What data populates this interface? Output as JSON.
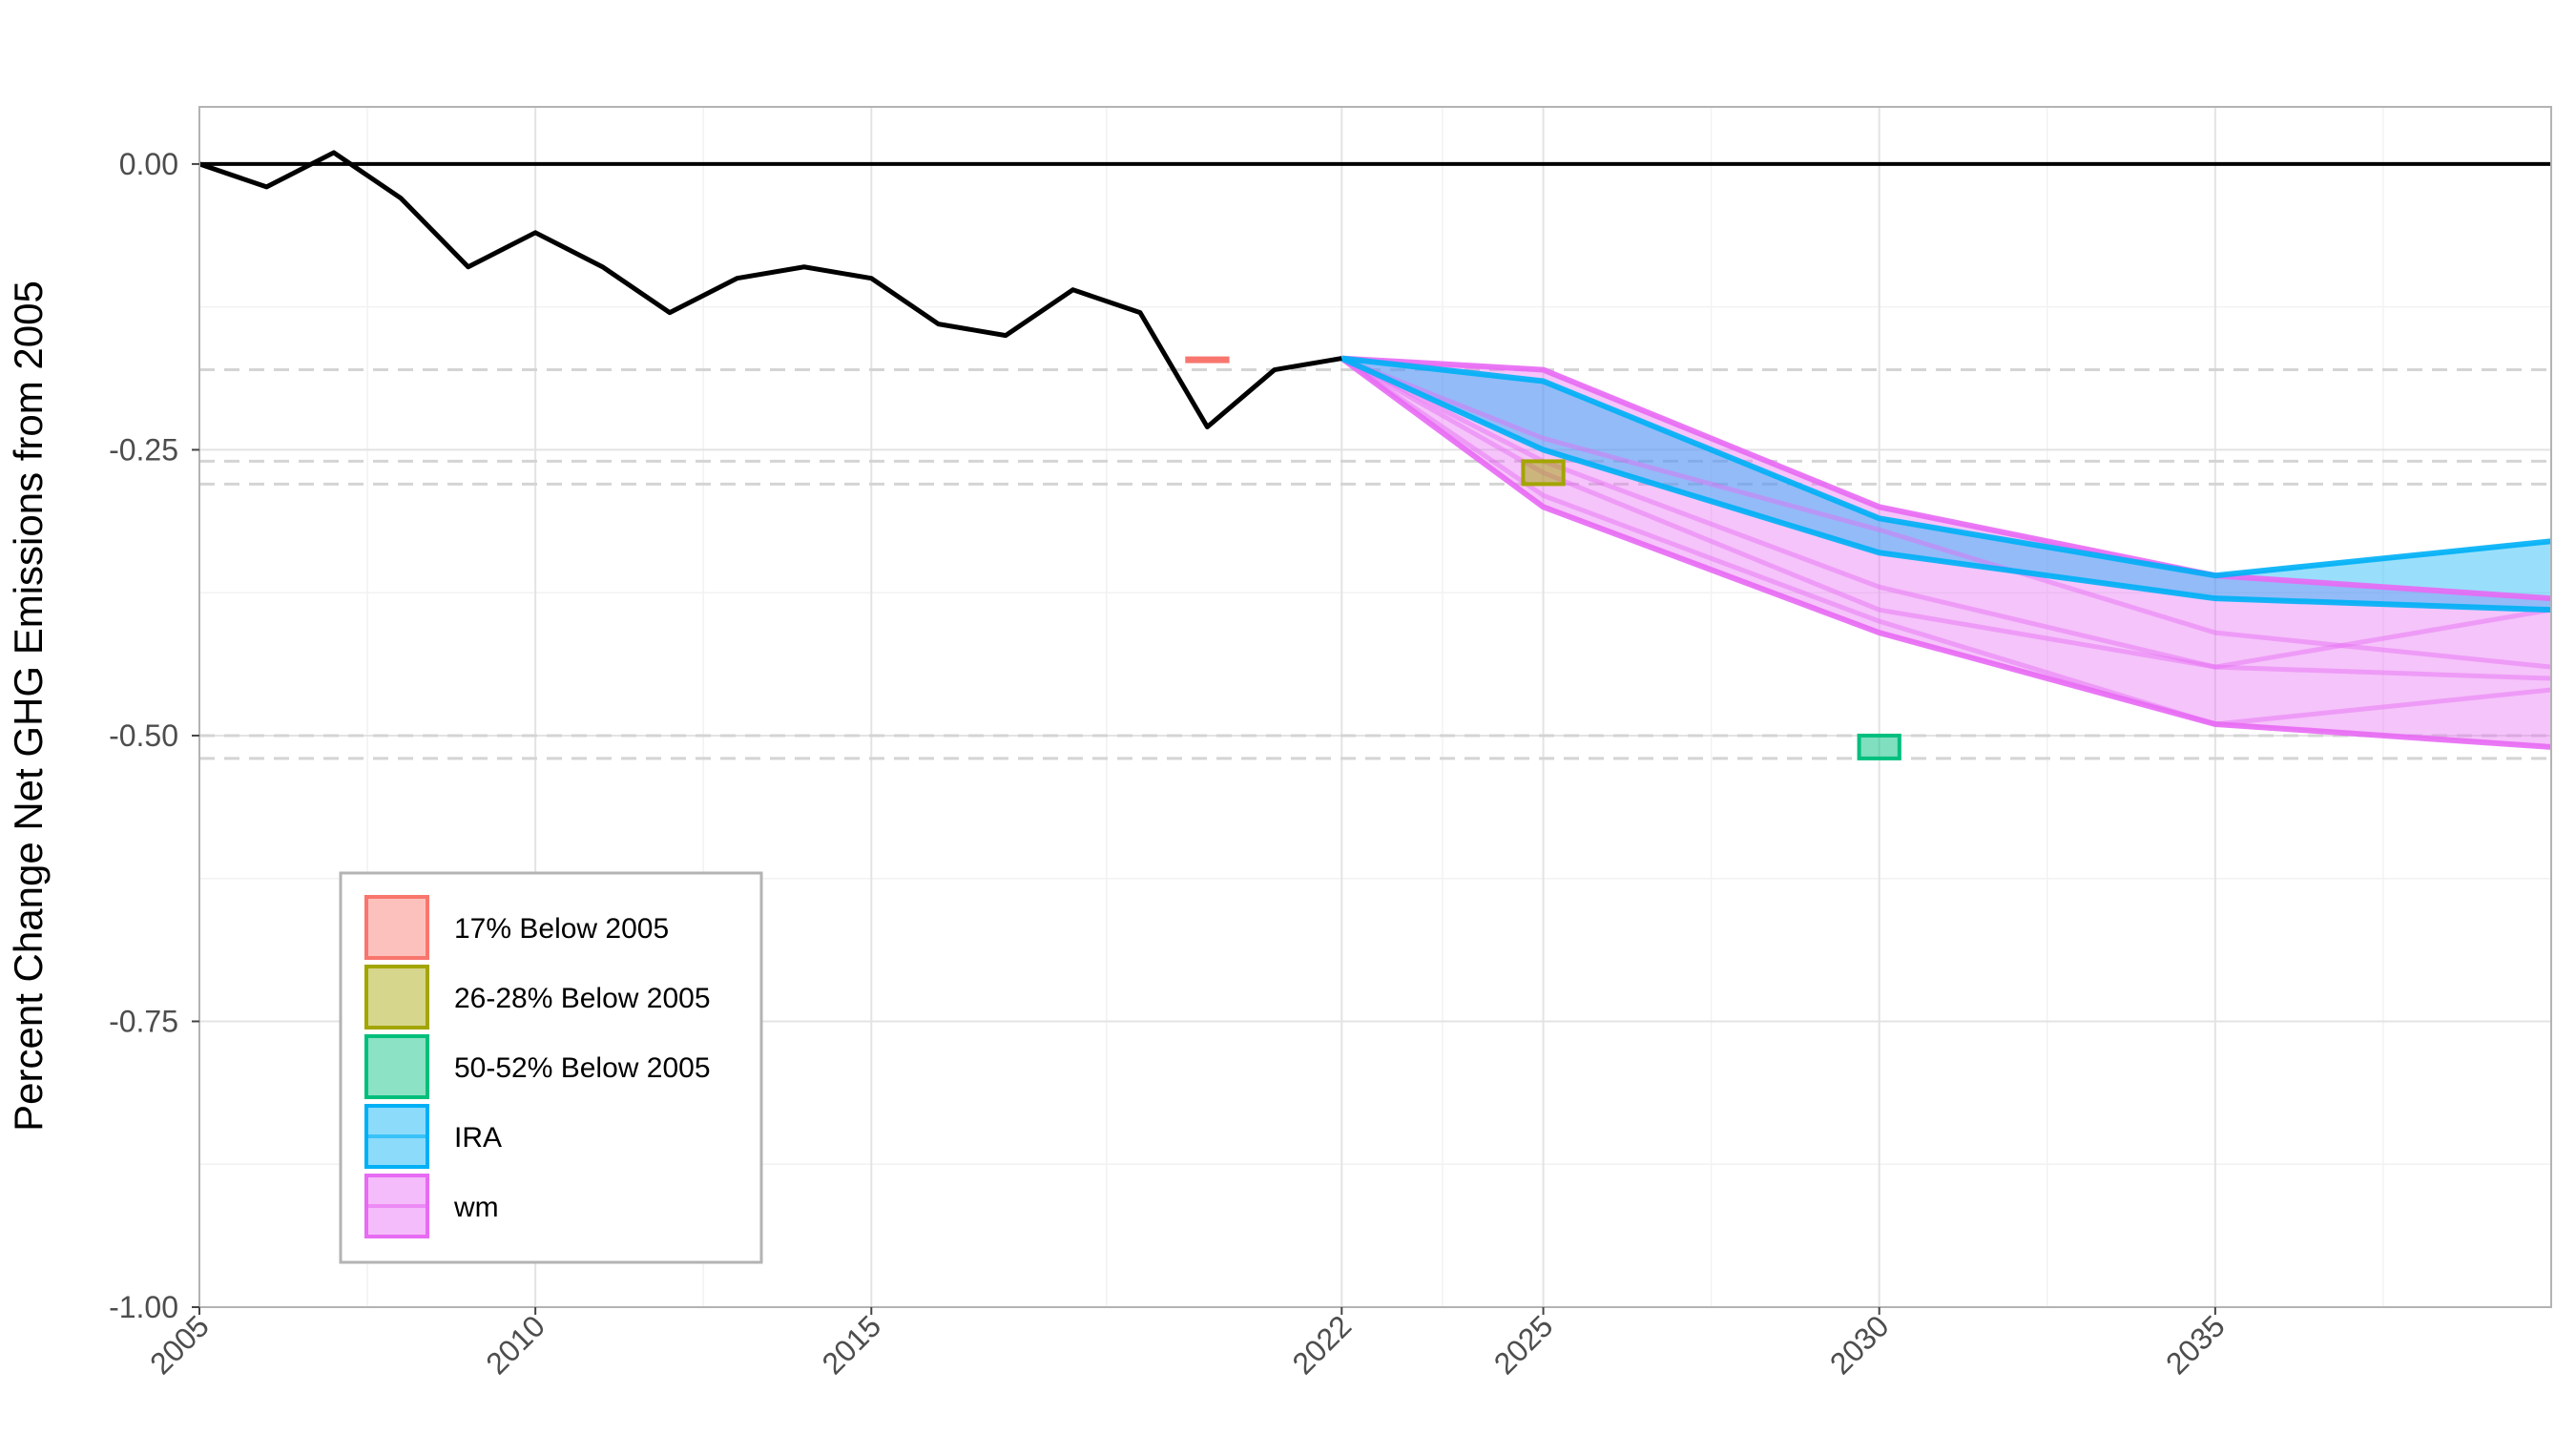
{
  "chart_data": {
    "type": "line",
    "title": "",
    "xlabel": "",
    "ylabel": "Percent Change Net GHG Emissions from 2005",
    "xlim": [
      2005,
      2040
    ],
    "ylim": [
      -1.0,
      0.05
    ],
    "x_ticks": [
      2005,
      2010,
      2015,
      2022,
      2025,
      2030,
      2035
    ],
    "x_tick_labels": [
      "2005",
      "2010",
      "2015",
      "2022",
      "2025",
      "2030",
      "2035"
    ],
    "y_ticks": [
      0.0,
      -0.25,
      -0.5,
      -0.75,
      -1.0
    ],
    "y_tick_labels": [
      "0.00",
      "-0.25",
      "-0.50",
      "-0.75",
      "-1.00"
    ],
    "grid": true,
    "reference_line": {
      "y": 0.0,
      "color": "#000000"
    },
    "target_dashed_lines": [
      -0.18,
      -0.26,
      -0.28,
      -0.5,
      -0.52
    ],
    "historical": {
      "color": "#000000",
      "x": [
        2005,
        2006,
        2007,
        2008,
        2009,
        2010,
        2011,
        2012,
        2013,
        2014,
        2015,
        2016,
        2017,
        2018,
        2019,
        2020,
        2021,
        2022
      ],
      "y": [
        0.0,
        -0.02,
        0.01,
        -0.03,
        -0.09,
        -0.06,
        -0.09,
        -0.13,
        -0.1,
        -0.09,
        -0.1,
        -0.14,
        -0.15,
        -0.11,
        -0.13,
        -0.23,
        -0.18,
        -0.17
      ]
    },
    "targets": [
      {
        "name": "17% Below 2005",
        "color": "#F8766D",
        "x": [
          2019.7,
          2020.3
        ],
        "y": [
          -0.17,
          -0.17
        ]
      },
      {
        "name": "26-28% Below 2005",
        "color": "#A3A500",
        "x": [
          2024.7,
          2025.3
        ],
        "y": [
          -0.26,
          -0.28
        ]
      },
      {
        "name": "50-52% Below 2005",
        "color": "#00BF7D",
        "x": [
          2029.7,
          2030.3
        ],
        "y": [
          -0.5,
          -0.52
        ]
      }
    ],
    "series": [
      {
        "name": "wm",
        "color": "#E76BF3",
        "x": [
          2022,
          2025,
          2030,
          2035,
          2040
        ],
        "lines": [
          [
            -0.17,
            -0.18,
            -0.3,
            -0.36,
            -0.38
          ],
          [
            -0.17,
            -0.24,
            -0.32,
            -0.41,
            -0.44
          ],
          [
            -0.17,
            -0.26,
            -0.37,
            -0.44,
            -0.39
          ],
          [
            -0.17,
            -0.27,
            -0.39,
            -0.44,
            -0.45
          ],
          [
            -0.17,
            -0.29,
            -0.4,
            -0.49,
            -0.46
          ],
          [
            -0.17,
            -0.3,
            -0.41,
            -0.49,
            -0.51
          ]
        ],
        "upper": [
          -0.17,
          -0.18,
          -0.3,
          -0.36,
          -0.38
        ],
        "lower": [
          -0.17,
          -0.3,
          -0.41,
          -0.49,
          -0.51
        ]
      },
      {
        "name": "IRA",
        "color": "#00B0F6",
        "x": [
          2022,
          2025,
          2030,
          2035,
          2040
        ],
        "lines": [
          [
            -0.17,
            -0.19,
            -0.31,
            -0.36,
            -0.33
          ],
          [
            -0.17,
            -0.25,
            -0.34,
            -0.38,
            -0.39
          ]
        ],
        "upper": [
          -0.17,
          -0.19,
          -0.31,
          -0.36,
          -0.33
        ],
        "lower": [
          -0.17,
          -0.25,
          -0.34,
          -0.38,
          -0.39
        ]
      }
    ],
    "legend": {
      "position": "bottom-left",
      "entries": [
        {
          "label": "17% Below 2005",
          "color": "#F8766D"
        },
        {
          "label": "26-28% Below 2005",
          "color": "#A3A500"
        },
        {
          "label": "50-52% Below 2005",
          "color": "#00BF7D"
        },
        {
          "label": "IRA",
          "color": "#00B0F6"
        },
        {
          "label": "wm",
          "color": "#E76BF3"
        }
      ]
    }
  }
}
